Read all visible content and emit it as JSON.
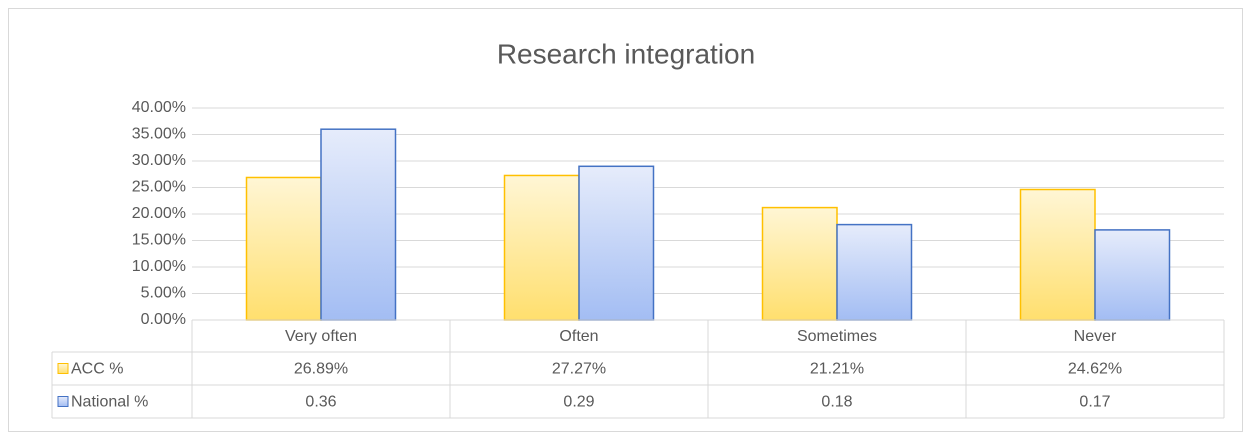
{
  "chart_data": {
    "type": "bar",
    "title": "Research integration",
    "categories": [
      "Very often",
      "Often",
      "Sometimes",
      "Never"
    ],
    "series": [
      {
        "name": "ACC %",
        "color": "#ffc000",
        "values": [
          26.89,
          27.27,
          21.21,
          24.62
        ],
        "value_labels": [
          "26.89%",
          "27.27%",
          "21.21%",
          "24.62%"
        ]
      },
      {
        "name": "National %",
        "color": "#4472c4",
        "values": [
          36,
          29,
          18,
          17
        ],
        "value_labels": [
          "0.36",
          "0.29",
          "0.18",
          "0.17"
        ]
      }
    ],
    "ylim": [
      0,
      40
    ],
    "yticks": [
      {
        "value": 0,
        "label": "0.00%"
      },
      {
        "value": 5,
        "label": "5.00%"
      },
      {
        "value": 10,
        "label": "10.00%"
      },
      {
        "value": 15,
        "label": "15.00%"
      },
      {
        "value": 20,
        "label": "20.00%"
      },
      {
        "value": 25,
        "label": "25.00%"
      },
      {
        "value": 30,
        "label": "30.00%"
      },
      {
        "value": 35,
        "label": "35.00%"
      },
      {
        "value": 40,
        "label": "40.00%"
      }
    ],
    "grid": true
  }
}
